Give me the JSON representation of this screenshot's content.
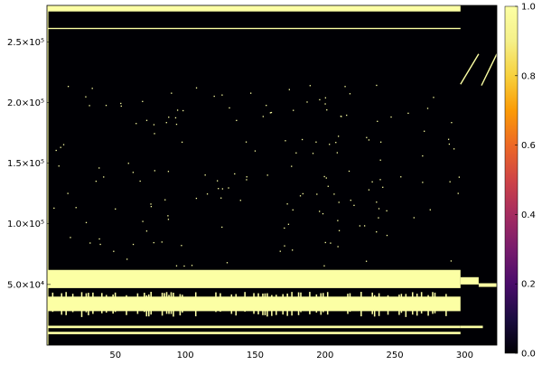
{
  "chart_data": {
    "type": "heatmap",
    "title": "",
    "xlabel": "",
    "ylabel": "",
    "xlim": [
      1,
      323
    ],
    "ylim": [
      1,
      280000
    ],
    "x_ticks": [
      {
        "value": 50,
        "label": "50"
      },
      {
        "value": 100,
        "label": "100"
      },
      {
        "value": 150,
        "label": "150"
      },
      {
        "value": 200,
        "label": "200"
      },
      {
        "value": 250,
        "label": "250"
      },
      {
        "value": 300,
        "label": "300"
      }
    ],
    "y_ticks": [
      {
        "value": 50000,
        "label": "5.0×10⁴"
      },
      {
        "value": 100000,
        "label": "1.0×10⁵"
      },
      {
        "value": 150000,
        "label": "1.5×10⁵"
      },
      {
        "value": 200000,
        "label": "2.0×10⁵"
      },
      {
        "value": 250000,
        "label": "2.5×10⁵"
      }
    ],
    "colorbar": {
      "colormap": "inferno",
      "range": [
        0.0,
        1.0
      ],
      "ticks": [
        {
          "value": 0.0,
          "label": "0.0"
        },
        {
          "value": 0.2,
          "label": "0.2"
        },
        {
          "value": 0.4,
          "label": "0.4"
        },
        {
          "value": 0.6,
          "label": "0.6"
        },
        {
          "value": 0.8,
          "label": "0.8"
        },
        {
          "value": 1.0,
          "label": "1.0"
        }
      ]
    },
    "colors": {
      "background_value0": "#000004",
      "value1": "#fcffa4"
    },
    "regions": [
      {
        "x": [
          1,
          297
        ],
        "y": [
          275000,
          280000
        ],
        "value": 1
      },
      {
        "x": [
          1,
          297
        ],
        "y": [
          260500,
          261500
        ],
        "value": 1
      },
      {
        "x": [
          1,
          297
        ],
        "y": [
          47000,
          62000
        ],
        "value": 1
      },
      {
        "x": [
          297,
          310
        ],
        "y": [
          50000,
          56000
        ],
        "value": 1
      },
      {
        "x": [
          310,
          323
        ],
        "y": [
          48000,
          51000
        ],
        "value": 1
      },
      {
        "x": [
          1,
          297
        ],
        "y": [
          28000,
          40000
        ],
        "value": 1
      },
      {
        "x": [
          1,
          297
        ],
        "y": [
          14000,
          16000
        ],
        "value": 1
      },
      {
        "x": [
          1,
          297
        ],
        "y": [
          9000,
          11000
        ],
        "value": 1
      },
      {
        "x": [
          297,
          313
        ],
        "y": [
          14000,
          16000
        ],
        "value": 1
      },
      {
        "x": [
          1,
          2
        ],
        "y": [
          1,
          280000
        ],
        "value": 1
      }
    ],
    "column_stripes": {
      "x_range": [
        3,
        297
      ],
      "y_range": [
        28000,
        44000
      ],
      "value": 1
    },
    "diagonal_segments": [
      {
        "x": [
          297,
          310
        ],
        "y": [
          215000,
          240000
        ],
        "value": 1
      },
      {
        "x": [
          312,
          323
        ],
        "y": [
          214000,
          240000
        ],
        "value": 1
      }
    ],
    "scattered_points": {
      "x_range": [
        3,
        297
      ],
      "y_range": [
        65000,
        215000
      ],
      "value": 1
    }
  }
}
